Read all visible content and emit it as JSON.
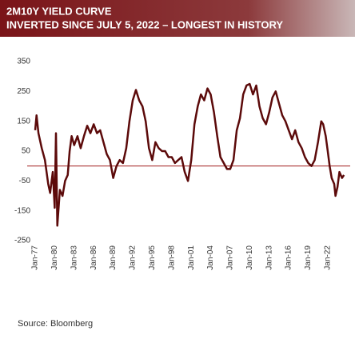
{
  "chart_data": {
    "type": "line",
    "title": "2M10Y YIELD CURVE",
    "subtitle": "INVERTED SINCE JULY 5, 2022 – LONGEST IN HISTORY",
    "source": "Source:  Bloomberg",
    "xlim": [
      1976.75,
      2024.72
    ],
    "ylim": [
      -250,
      350
    ],
    "yticks": [
      -250,
      -150,
      -50,
      50,
      150,
      250,
      350
    ],
    "xticks": [
      {
        "value": 1977,
        "label": "Jan-77"
      },
      {
        "value": 1980,
        "label": "Jan-80"
      },
      {
        "value": 1983,
        "label": "Jan-83"
      },
      {
        "value": 1986,
        "label": "Jan-86"
      },
      {
        "value": 1989,
        "label": "Jan-89"
      },
      {
        "value": 1992,
        "label": "Jan-92"
      },
      {
        "value": 1995,
        "label": "Jan-95"
      },
      {
        "value": 1998,
        "label": "Jan-98"
      },
      {
        "value": 2001,
        "label": "Jan-01"
      },
      {
        "value": 2004,
        "label": "Jan-04"
      },
      {
        "value": 2007,
        "label": "Jan-07"
      },
      {
        "value": 2010,
        "label": "Jan-10"
      },
      {
        "value": 2013,
        "label": "Jan-13"
      },
      {
        "value": 2016,
        "label": "Jan-16"
      },
      {
        "value": 2019,
        "label": "Jan-19"
      },
      {
        "value": 2022,
        "label": "Jan-22"
      }
    ],
    "reference_line": 0,
    "reference_color": "#a01c1c",
    "x": [
      1977.0,
      1977.2,
      1977.5,
      1978.0,
      1978.5,
      1979.0,
      1979.3,
      1979.7,
      1980.0,
      1980.2,
      1980.4,
      1980.8,
      1981.2,
      1981.6,
      1982.0,
      1982.3,
      1982.6,
      1983.0,
      1983.5,
      1984.0,
      1984.5,
      1985.0,
      1985.5,
      1986.0,
      1986.5,
      1987.0,
      1987.5,
      1988.0,
      1988.5,
      1989.0,
      1989.5,
      1990.0,
      1990.5,
      1991.0,
      1991.5,
      1992.0,
      1992.5,
      1993.0,
      1993.5,
      1994.0,
      1994.5,
      1995.0,
      1995.5,
      1996.0,
      1996.5,
      1997.0,
      1997.5,
      1998.0,
      1998.5,
      1999.0,
      1999.5,
      2000.0,
      2000.5,
      2001.0,
      2001.5,
      2002.0,
      2002.5,
      2003.0,
      2003.5,
      2004.0,
      2004.5,
      2005.0,
      2005.5,
      2006.0,
      2006.5,
      2007.0,
      2007.5,
      2008.0,
      2008.5,
      2009.0,
      2009.5,
      2010.0,
      2010.5,
      2011.0,
      2011.5,
      2012.0,
      2012.5,
      2013.0,
      2013.5,
      2014.0,
      2014.5,
      2015.0,
      2015.5,
      2016.0,
      2016.5,
      2017.0,
      2017.5,
      2018.0,
      2018.5,
      2019.0,
      2019.5,
      2020.0,
      2020.5,
      2021.0,
      2021.3,
      2021.7,
      2022.0,
      2022.3,
      2022.6,
      2023.0,
      2023.2,
      2023.5,
      2023.8,
      2024.2,
      2024.5
    ],
    "series": [
      {
        "color": "#5c0a0a",
        "values": [
          120,
          170,
          110,
          60,
          20,
          -60,
          -90,
          -20,
          -140,
          110,
          -200,
          -80,
          -100,
          -50,
          -30,
          50,
          100,
          70,
          100,
          60,
          100,
          135,
          110,
          140,
          110,
          120,
          80,
          40,
          20,
          -40,
          0,
          20,
          10,
          60,
          150,
          220,
          255,
          220,
          200,
          150,
          60,
          20,
          80,
          60,
          50,
          50,
          30,
          30,
          10,
          20,
          30,
          -20,
          -50,
          20,
          140,
          200,
          240,
          220,
          260,
          240,
          180,
          100,
          30,
          10,
          -10,
          -10,
          20,
          120,
          160,
          240,
          270,
          275,
          240,
          270,
          200,
          160,
          140,
          180,
          230,
          250,
          210,
          170,
          150,
          120,
          90,
          120,
          80,
          60,
          30,
          10,
          0,
          20,
          80,
          150,
          140,
          100,
          50,
          0,
          -40,
          -60,
          -100,
          -70,
          -20,
          -40,
          -30
        ]
      }
    ]
  }
}
